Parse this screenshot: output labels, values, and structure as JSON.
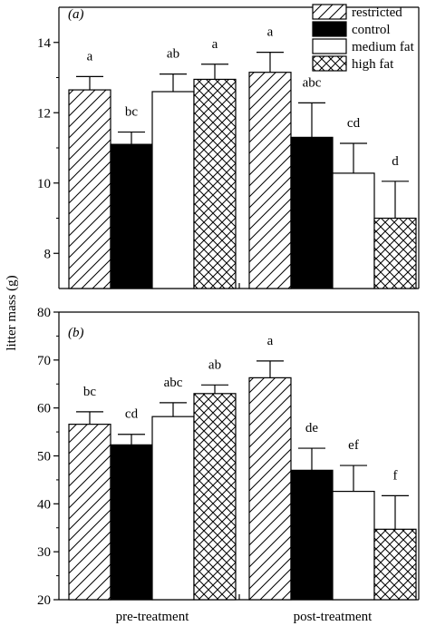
{
  "figure": {
    "ylabel": "litter mass (g)",
    "legend": [
      {
        "label": "restricted",
        "pattern": "hatch"
      },
      {
        "label": "control",
        "pattern": "solid"
      },
      {
        "label": "medium fat",
        "pattern": "open"
      },
      {
        "label": "high fat",
        "pattern": "cross"
      }
    ]
  },
  "chart_data": [
    {
      "type": "bar",
      "panel_label": "(a)",
      "groups": [
        "pre-treatment",
        "post-treatment"
      ],
      "ylim": [
        7,
        15
      ],
      "yticks": [
        8,
        10,
        12,
        14
      ],
      "series": [
        {
          "name": "restricted",
          "values": [
            12.65,
            13.15
          ],
          "errors": [
            0.38,
            0.57
          ],
          "letters": [
            "a",
            "a"
          ]
        },
        {
          "name": "control",
          "values": [
            11.1,
            11.3
          ],
          "errors": [
            0.35,
            0.98
          ],
          "letters": [
            "bc",
            "abc"
          ]
        },
        {
          "name": "medium fat",
          "values": [
            12.6,
            10.28
          ],
          "errors": [
            0.5,
            0.85
          ],
          "letters": [
            "ab",
            "cd"
          ]
        },
        {
          "name": "high fat",
          "values": [
            12.95,
            9.0
          ],
          "errors": [
            0.43,
            1.05
          ],
          "letters": [
            "a",
            "d"
          ]
        }
      ]
    },
    {
      "type": "bar",
      "panel_label": "(b)",
      "groups": [
        "pre-treatment",
        "post-treatment"
      ],
      "ylim": [
        20,
        80
      ],
      "yticks": [
        20,
        30,
        40,
        50,
        60,
        70,
        80
      ],
      "series": [
        {
          "name": "restricted",
          "values": [
            56.6,
            66.3
          ],
          "errors": [
            2.6,
            3.5
          ],
          "letters": [
            "bc",
            "a"
          ]
        },
        {
          "name": "control",
          "values": [
            52.3,
            47.0
          ],
          "errors": [
            2.2,
            4.6
          ],
          "letters": [
            "cd",
            "de"
          ]
        },
        {
          "name": "medium fat",
          "values": [
            58.2,
            42.6
          ],
          "errors": [
            2.9,
            5.4
          ],
          "letters": [
            "abc",
            "ef"
          ]
        },
        {
          "name": "high fat",
          "values": [
            63.0,
            34.7
          ],
          "errors": [
            1.8,
            7.0
          ],
          "letters": [
            "ab",
            "f"
          ]
        }
      ]
    }
  ]
}
